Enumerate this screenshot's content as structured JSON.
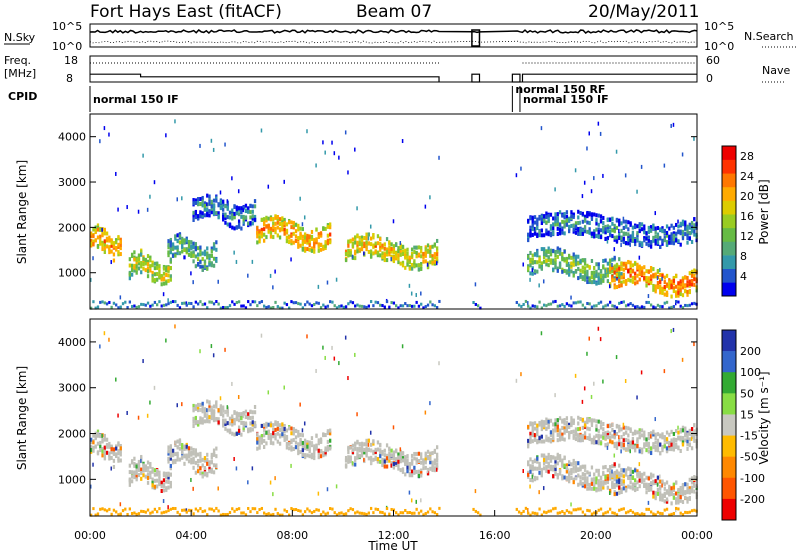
{
  "header": {
    "station": "Fort Hays East (fitACF)",
    "beam": "Beam 07",
    "date": "20/May/2011"
  },
  "labels": {
    "nsky": "N.Sky",
    "nsearch": "N.Search",
    "freq": "Freq.",
    "mhz": "[MHz]",
    "nave": "Nave",
    "cpid": "CPID",
    "nsky_tick_hi": "10^5",
    "nsky_tick_lo": "10^0",
    "nsearch_tick_hi": "10^5",
    "nsearch_tick_lo": "10^0",
    "freq_tick_hi": "18",
    "freq_tick_lo": "8",
    "nave_tick_hi": "60",
    "nave_tick_lo": "0"
  },
  "cpid_segments": [
    {
      "label": "normal 150 IF",
      "start_hour": 0.0,
      "row": 0
    },
    {
      "label": "normal 150 RF",
      "start_hour": 16.7,
      "row": -1
    },
    {
      "label": "normal 150 IF",
      "start_hour": 17.0,
      "row": 0
    }
  ],
  "colors": {
    "power_scale": [
      "#0000ee",
      "#2255cc",
      "#3399aa",
      "#55aa77",
      "#66bb44",
      "#99cc22",
      "#ddcc00",
      "#ffaa00",
      "#ff7700",
      "#ff3300",
      "#ee0000"
    ],
    "velocity_scale": [
      "#2233aa",
      "#3366cc",
      "#33aa33",
      "#88dd44",
      "#c8c8c0",
      "#ffbb00",
      "#ff8800",
      "#ff5500",
      "#ee0000"
    ],
    "ground_scatter": "#c0c0b8"
  },
  "chart_data": [
    {
      "type": "line",
      "name": "noise",
      "ylabel_left": "N.Sky",
      "ylabel_right": "N.Search",
      "yscale": "log",
      "ylim": [
        1,
        100000
      ],
      "xlim_hours": [
        0,
        24
      ]
    },
    {
      "type": "line",
      "name": "frequency",
      "ylabel_left": "Freq. [MHz]",
      "ylabel_right": "Nave",
      "ylim_left": [
        8,
        18
      ],
      "ylim_right": [
        0,
        60
      ],
      "xlim_hours": [
        0,
        24
      ]
    },
    {
      "type": "heatmap",
      "name": "power",
      "ylabel": "Slant Range [km]",
      "xlabel": "",
      "yticks": [
        "1000",
        "2000",
        "3000",
        "4000"
      ],
      "ylim": [
        200,
        4500
      ],
      "colorbar_label": "Power [dB]",
      "colorbar_ticks": [
        "4",
        "8",
        "12",
        "16",
        "20",
        "24",
        "28"
      ],
      "colorbar_range": [
        0,
        30
      ],
      "data_gaps_hours": [
        [
          13.8,
          15.1
        ],
        [
          15.4,
          16.8
        ]
      ],
      "scatter_bands": [
        {
          "start_hour": 0.0,
          "end_hour": 1.2,
          "range_km": 1700,
          "power_db": 22
        },
        {
          "start_hour": 1.5,
          "end_hour": 3.2,
          "range_km": 1150,
          "power_db": 18
        },
        {
          "start_hour": 3.0,
          "end_hour": 5.0,
          "range_km": 1500,
          "power_db": 12
        },
        {
          "start_hour": 4.0,
          "end_hour": 6.5,
          "range_km": 2400,
          "power_db": 8
        },
        {
          "start_hour": 6.5,
          "end_hour": 9.5,
          "range_km": 1900,
          "power_db": 22
        },
        {
          "start_hour": 10.0,
          "end_hour": 13.7,
          "range_km": 1500,
          "power_db": 20
        },
        {
          "start_hour": 17.2,
          "end_hour": 21.0,
          "range_km": 1200,
          "power_db": 14
        },
        {
          "start_hour": 20.5,
          "end_hour": 24.0,
          "range_km": 900,
          "power_db": 24
        },
        {
          "start_hour": 17.2,
          "end_hour": 24.0,
          "range_km": 2000,
          "power_db": 8
        }
      ]
    },
    {
      "type": "heatmap",
      "name": "velocity",
      "ylabel": "Slant Range [km]",
      "xlabel": "Time UT",
      "yticks": [
        "1000",
        "2000",
        "3000",
        "4000"
      ],
      "ylim": [
        200,
        4500
      ],
      "colorbar_label": "Velocity [m s⁻¹]",
      "colorbar_ticks": [
        "200",
        "100",
        "50",
        "15",
        "-15",
        "-50",
        "-100",
        "-200"
      ],
      "colorbar_range": [
        -250,
        250
      ],
      "xticks": [
        "00:00",
        "04:00",
        "08:00",
        "12:00",
        "16:00",
        "20:00",
        "00:00"
      ],
      "xlim_hours": [
        0,
        24
      ],
      "data_gaps_hours": [
        [
          13.8,
          15.1
        ],
        [
          15.4,
          16.8
        ]
      ]
    }
  ]
}
